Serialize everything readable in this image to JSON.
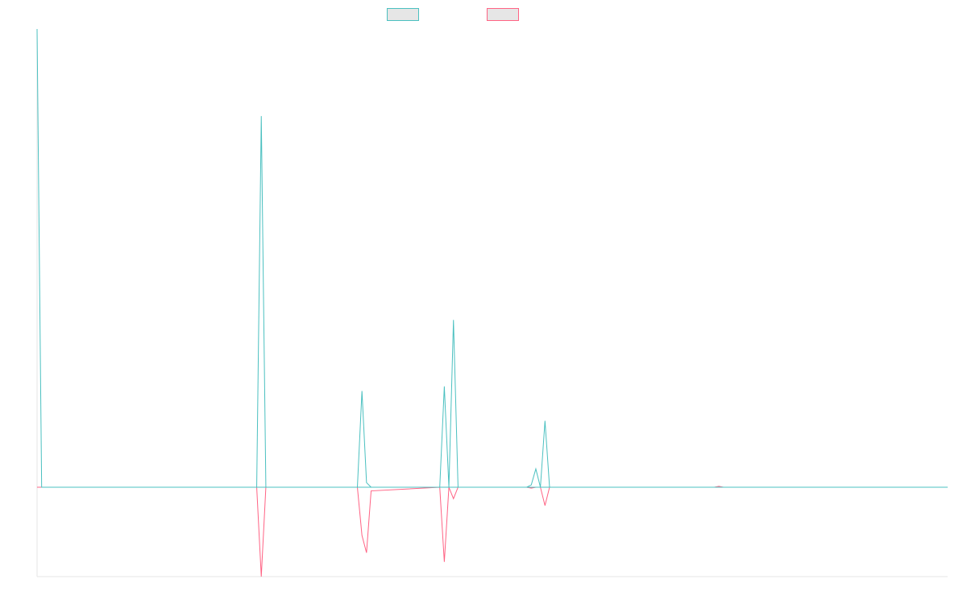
{
  "chart_data": {
    "type": "line",
    "title": "",
    "xlabel": "",
    "ylabel": "",
    "x": [
      0,
      1,
      48,
      49,
      50,
      70,
      71,
      72,
      73,
      88,
      89,
      90,
      91,
      92,
      107,
      108,
      109,
      110,
      111,
      112
    ],
    "xlim": [
      0,
      199
    ],
    "ylim": [
      -0.195,
      1.0
    ],
    "legend_position": "top-center",
    "grid": false,
    "series": [
      {
        "name": "",
        "color": "#4bc0c0",
        "x": [
          0,
          1,
          48,
          49,
          50,
          70,
          71,
          72,
          73,
          88,
          89,
          90,
          91,
          92,
          107,
          108,
          109,
          110,
          111,
          112,
          199
        ],
        "values": [
          1.0,
          0,
          0,
          0.81,
          0,
          0,
          0.21,
          0.01,
          0,
          0,
          0.22,
          0,
          0.365,
          0,
          0,
          0.005,
          0.04,
          0,
          0.145,
          0,
          0
        ]
      },
      {
        "name": "",
        "color": "#ff6384",
        "x": [
          0,
          48,
          49,
          50,
          70,
          71,
          72,
          73,
          88,
          89,
          90,
          91,
          92,
          107,
          108,
          109,
          110,
          111,
          112,
          148,
          149,
          150,
          199
        ],
        "values": [
          0,
          0,
          -0.195,
          0,
          0,
          -0.105,
          -0.143,
          -0.008,
          0,
          -0.163,
          0,
          -0.025,
          0,
          0,
          -0.002,
          0,
          0,
          -0.04,
          0,
          0,
          0.002,
          0,
          0
        ]
      }
    ]
  }
}
